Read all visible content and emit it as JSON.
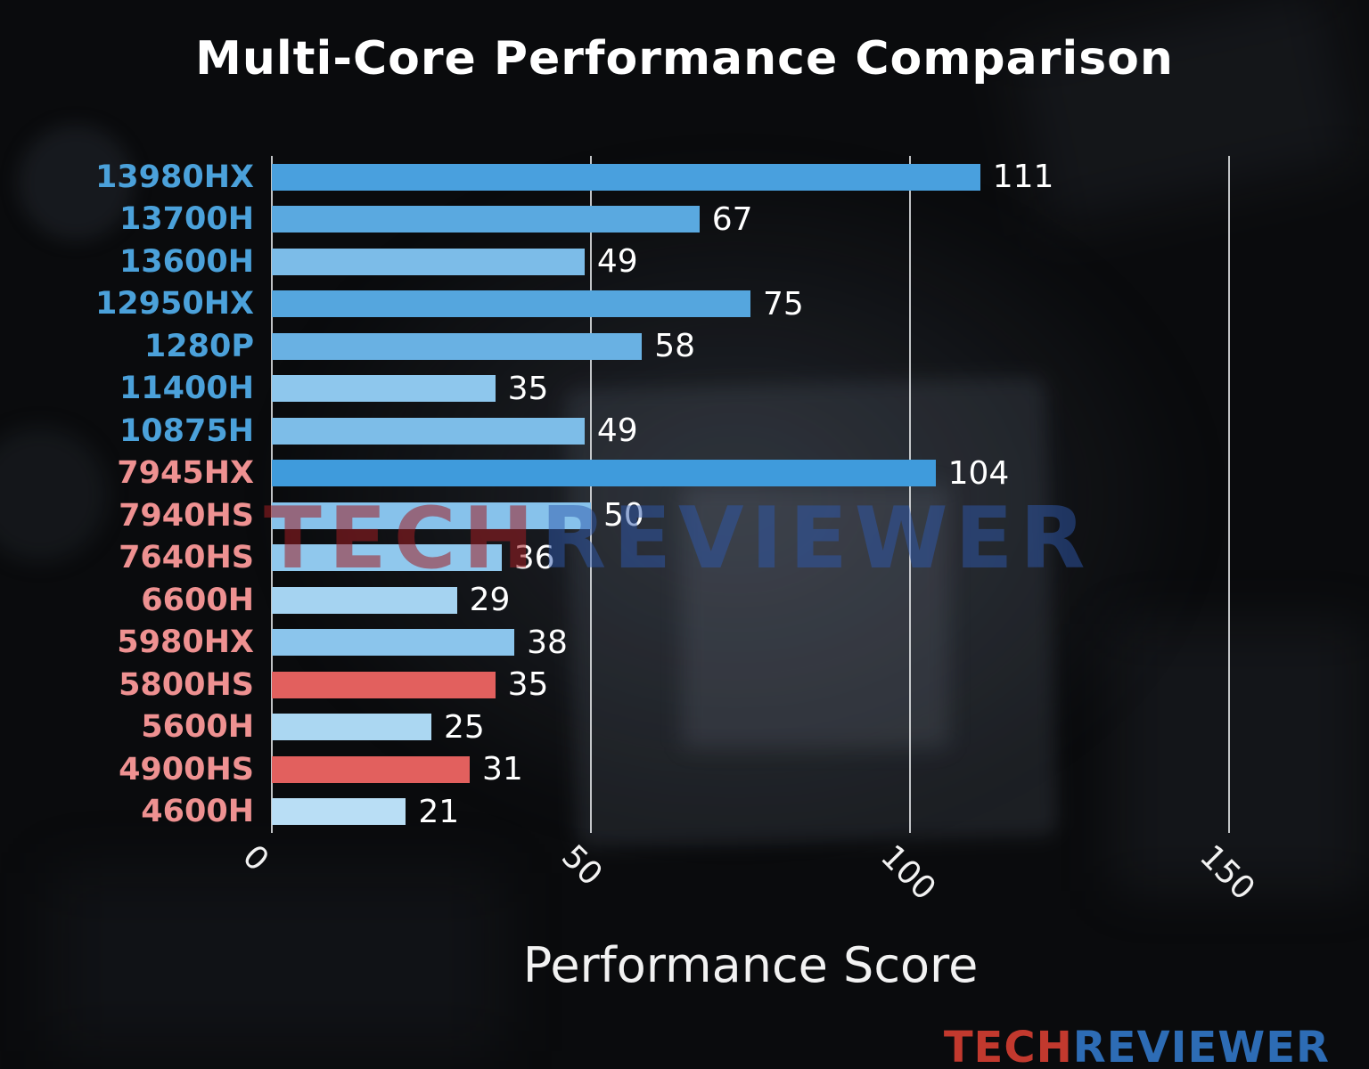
{
  "title": "Multi-Core Performance Comparison",
  "xlabel": "Performance Score",
  "watermark": {
    "tech": "TECH",
    "reviewer": "REVIEWER",
    "tech_color": "rgba(158,30,34,0.55)",
    "reviewer_color": "rgba(46,88,172,0.50)"
  },
  "logo": {
    "tech": "TECH",
    "reviewer": "REVIEWER",
    "tech_color": "#c2392e",
    "reviewer_color": "#2d6cb5"
  },
  "chart_data": {
    "type": "bar",
    "orientation": "horizontal",
    "title": "Multi-Core Performance Comparison",
    "xlabel": "Performance Score",
    "ylabel": "",
    "xlim": [
      0,
      150
    ],
    "xticks": [
      0,
      50,
      100,
      150
    ],
    "xtick_labels": [
      "0",
      "50",
      "100",
      "150"
    ],
    "grid": "vertical",
    "legend": "none",
    "categories": [
      "13980HX",
      "13700H",
      "13600H",
      "12950HX",
      "1280P",
      "11400H",
      "10875H",
      "7945HX",
      "7940HS",
      "7640HS",
      "6600H",
      "5980HX",
      "5800HS",
      "5600H",
      "4900HS",
      "4600H"
    ],
    "values": [
      111,
      67,
      49,
      75,
      58,
      35,
      49,
      104,
      50,
      36,
      29,
      38,
      35,
      25,
      31,
      21
    ],
    "bar_colors": [
      "#49a0de",
      "#5aa9e0",
      "#7cbce8",
      "#55a6de",
      "#69b1e3",
      "#8ec7ed",
      "#7dbde8",
      "#3f9bdc",
      "#87c2eb",
      "#90c8ed",
      "#a5d3f1",
      "#8bc5ec",
      "#e2605e",
      "#abd7f2",
      "#e2605e",
      "#b9def5"
    ],
    "label_colors": [
      "#4ba1da",
      "#4ba1da",
      "#4ba1da",
      "#4ba1da",
      "#4ba1da",
      "#4ba1da",
      "#4ba1da",
      "#ee9191",
      "#ee9191",
      "#ee9191",
      "#ee9191",
      "#ee9191",
      "#ee9191",
      "#ee9191",
      "#ee9191",
      "#ee9191"
    ],
    "value_label_color": "#ffffff"
  }
}
